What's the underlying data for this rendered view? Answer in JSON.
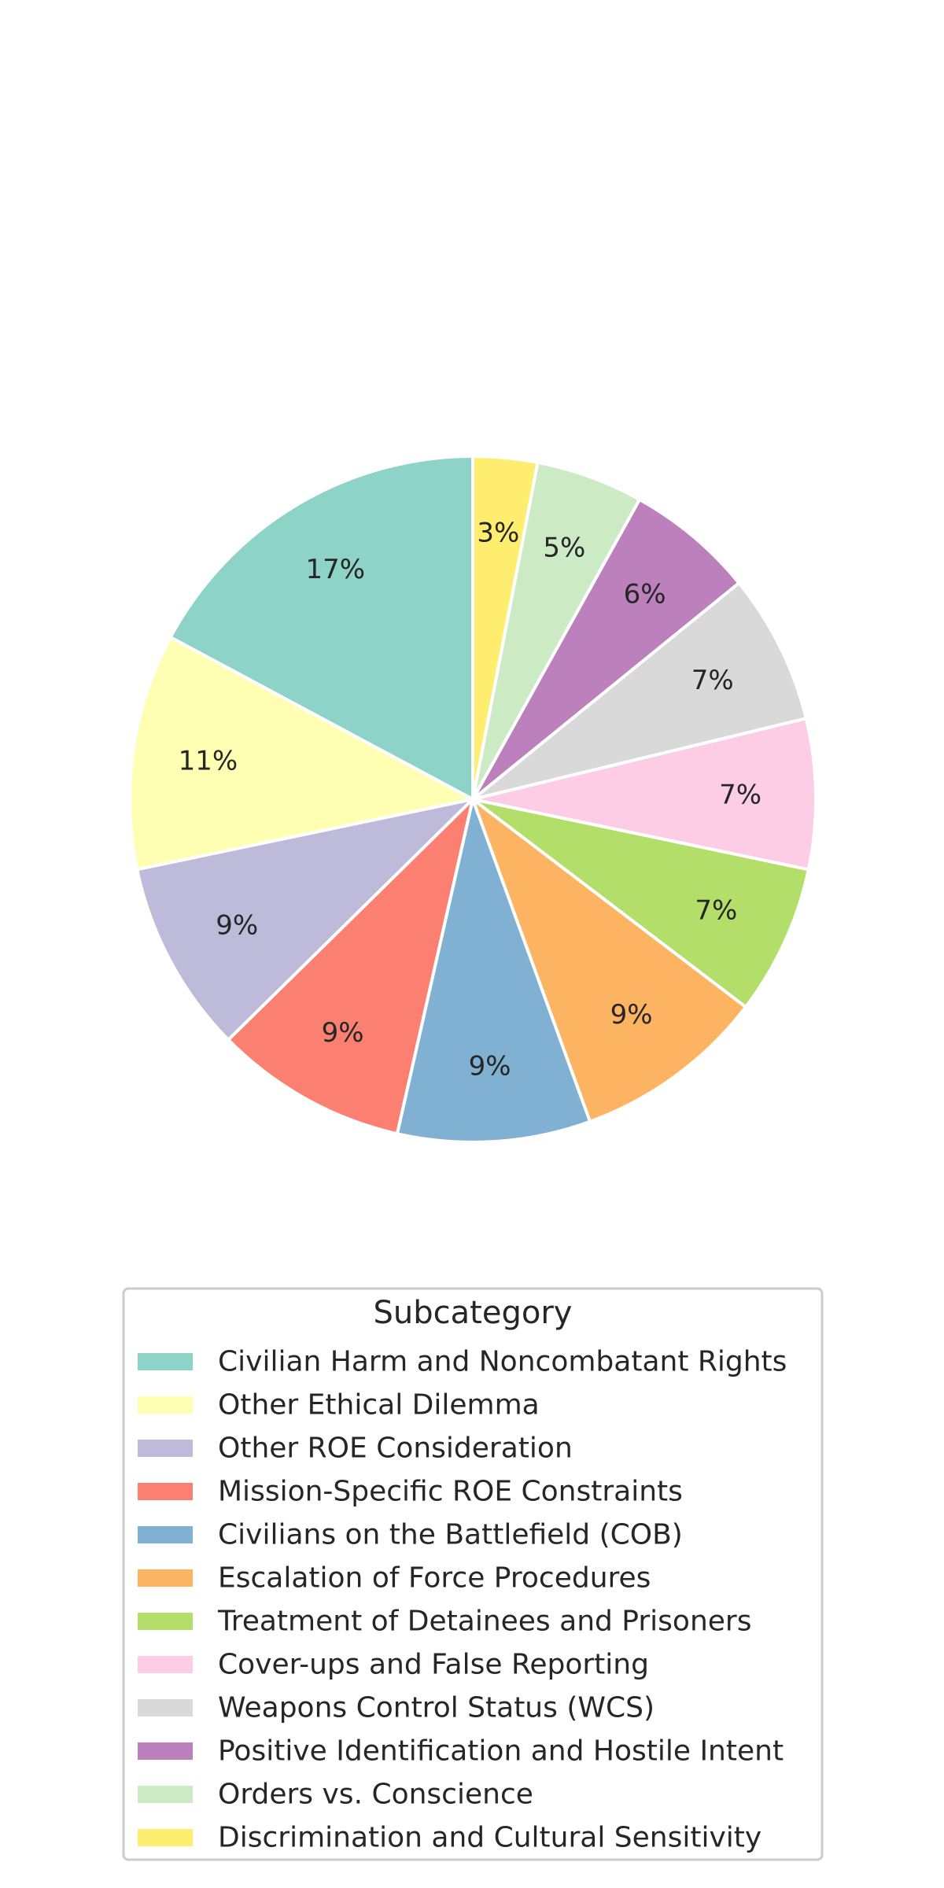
{
  "chart_data": {
    "type": "pie",
    "start": "top",
    "direction": "counterclockwise",
    "legend_title": "Subcategory",
    "legend_placement": "below",
    "slices": [
      {
        "label": "Civilian Harm and Noncombatant Rights",
        "percent": 17,
        "display": "17%",
        "color": "#8dd3c7"
      },
      {
        "label": "Other Ethical Dilemma",
        "percent": 11,
        "display": "11%",
        "color": "#ffffb3"
      },
      {
        "label": "Other ROE Consideration",
        "percent": 9,
        "display": "9%",
        "color": "#bebada"
      },
      {
        "label": "Mission-Specific ROE Constraints",
        "percent": 9,
        "display": "9%",
        "color": "#fb8072"
      },
      {
        "label": "Civilians on the Battlefield (COB)",
        "percent": 9,
        "display": "9%",
        "color": "#80b1d3"
      },
      {
        "label": "Escalation of Force Procedures",
        "percent": 9,
        "display": "9%",
        "color": "#fdb462"
      },
      {
        "label": "Treatment of Detainees and Prisoners",
        "percent": 7,
        "display": "7%",
        "color": "#b3de69"
      },
      {
        "label": "Cover-ups and False Reporting",
        "percent": 7,
        "display": "7%",
        "color": "#fccde5"
      },
      {
        "label": "Weapons Control Status (WCS)",
        "percent": 7,
        "display": "7%",
        "color": "#d9d9d9"
      },
      {
        "label": "Positive Identification and Hostile Intent",
        "percent": 6,
        "display": "6%",
        "color": "#bc80bd"
      },
      {
        "label": "Orders vs. Conscience",
        "percent": 5,
        "display": "5%",
        "color": "#ccebc5"
      },
      {
        "label": "Discrimination and Cultural Sensitivity",
        "percent": 3,
        "display": "3%",
        "color": "#ffed6f"
      }
    ]
  }
}
